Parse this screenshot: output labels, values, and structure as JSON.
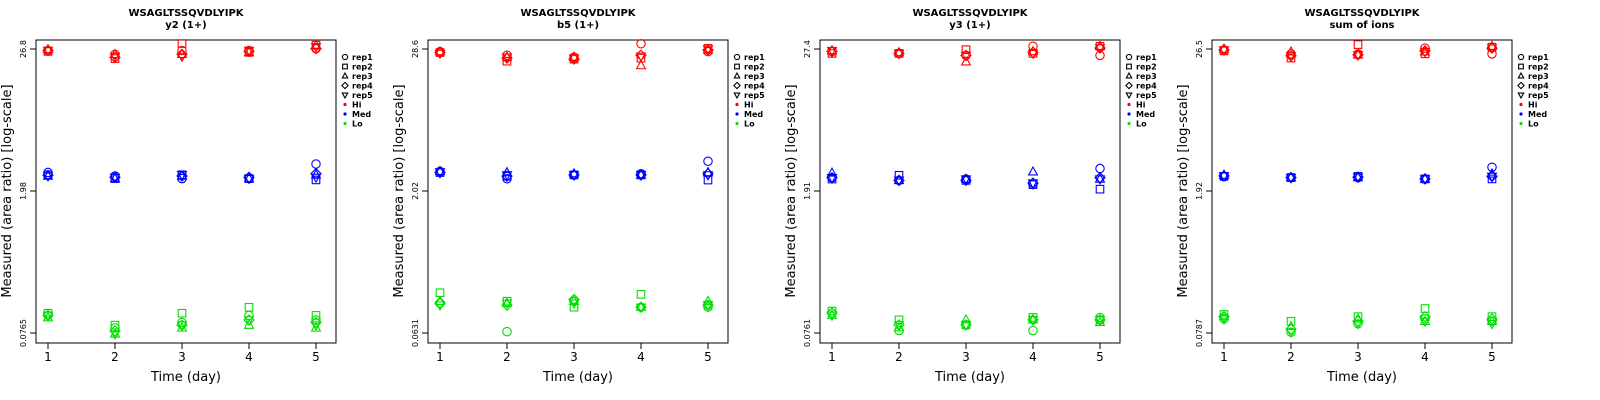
{
  "chart_data": [
    {
      "type": "scatter",
      "title": "WSAGLTSSQVDLYIPK",
      "subtitle": "y2 (1+)",
      "xlabel": "Time (day)",
      "ylabel": "Measured (area ratio) [log-scale]",
      "x_ticks": [
        "1",
        "2",
        "3",
        "4",
        "5"
      ],
      "y_tick_labels": [
        "0.0765",
        "1.98",
        "26.8"
      ],
      "y_scale": "log",
      "ylim": [
        0.0765,
        26.8
      ],
      "legend": {
        "position": "right",
        "entries": [
          "rep1",
          "rep2",
          "rep3",
          "rep4",
          "rep5",
          "Hi",
          "Med",
          "Lo"
        ]
      },
      "groups": [
        {
          "name": "Hi",
          "color": "#ff0000",
          "reps": [
            [
              26.0,
              24.0,
              26.0,
              26.0,
              27.0
            ],
            [
              25.5,
              22.0,
              30.0,
              25.0,
              29.0
            ],
            [
              26.5,
              24.0,
              24.0,
              25.0,
              29.0
            ],
            [
              26.0,
              22.5,
              24.0,
              25.5,
              27.0
            ],
            [
              26.0,
              23.0,
              23.0,
              26.0,
              28.0
            ]
          ]
        },
        {
          "name": "Med",
          "color": "#0000ff",
          "reps": [
            [
              2.1,
              1.95,
              1.85,
              1.85,
              2.5
            ],
            [
              2.0,
              1.85,
              2.0,
              1.85,
              1.8
            ],
            [
              1.95,
              1.85,
              1.95,
              1.85,
              2.0
            ],
            [
              1.98,
              1.9,
              1.95,
              1.9,
              2.05
            ],
            [
              1.95,
              1.9,
              2.0,
              1.85,
              1.9
            ]
          ]
        },
        {
          "name": "Lo",
          "color": "#00e000",
          "reps": [
            [
              0.11,
              0.085,
              0.095,
              0.11,
              0.1
            ],
            [
              0.115,
              0.09,
              0.115,
              0.13,
              0.11
            ],
            [
              0.105,
              0.075,
              0.085,
              0.09,
              0.085
            ],
            [
              0.11,
              0.08,
              0.09,
              0.1,
              0.095
            ],
            [
              0.11,
              0.075,
              0.09,
              0.1,
              0.09
            ]
          ]
        }
      ]
    },
    {
      "type": "scatter",
      "title": "WSAGLTSSQVDLYIPK",
      "subtitle": "b5 (1+)",
      "xlabel": "Time (day)",
      "ylabel": "Measured (area ratio) [log-scale]",
      "x_ticks": [
        "1",
        "2",
        "3",
        "4",
        "5"
      ],
      "y_tick_labels": [
        "0.0631",
        "2.02",
        "28.6"
      ],
      "y_scale": "log",
      "ylim": [
        0.0631,
        28.6
      ],
      "legend": {
        "position": "right",
        "entries": [
          "rep1",
          "rep2",
          "rep3",
          "rep4",
          "rep5",
          "Hi",
          "Med",
          "Lo"
        ]
      },
      "groups": [
        {
          "name": "Hi",
          "color": "#ff0000",
          "reps": [
            [
              27.0,
              25.0,
              24.0,
              32.0,
              27.0
            ],
            [
              26.5,
              22.0,
              23.0,
              23.5,
              29.0
            ],
            [
              27.0,
              24.0,
              24.0,
              20.0,
              28.0
            ],
            [
              26.5,
              23.5,
              23.0,
              25.0,
              28.0
            ],
            [
              26.0,
              24.0,
              23.5,
              24.5,
              28.5
            ]
          ]
        },
        {
          "name": "Med",
          "color": "#0000ff",
          "reps": [
            [
              2.05,
              1.75,
              1.9,
              1.95,
              2.55
            ],
            [
              2.0,
              1.85,
              1.9,
              1.9,
              1.7
            ],
            [
              2.05,
              2.0,
              1.95,
              1.9,
              2.0
            ],
            [
              2.0,
              1.85,
              1.9,
              1.9,
              1.95
            ],
            [
              2.02,
              1.9,
              1.9,
              1.9,
              1.9
            ]
          ]
        },
        {
          "name": "Lo",
          "color": "#00e000",
          "reps": [
            [
              0.12,
              0.065,
              0.125,
              0.11,
              0.11
            ],
            [
              0.15,
              0.125,
              0.11,
              0.145,
              0.115
            ],
            [
              0.125,
              0.12,
              0.125,
              0.11,
              0.125
            ],
            [
              0.12,
              0.115,
              0.13,
              0.11,
              0.115
            ],
            [
              0.115,
              0.12,
              0.12,
              0.11,
              0.115
            ]
          ]
        }
      ]
    },
    {
      "type": "scatter",
      "title": "WSAGLTSSQVDLYIPK",
      "subtitle": "y3 (1+)",
      "xlabel": "Time (day)",
      "ylabel": "Measured (area ratio) [log-scale]",
      "x_ticks": [
        "1",
        "2",
        "3",
        "4",
        "5"
      ],
      "y_tick_labels": [
        "0.0761",
        "1.91",
        "27.4"
      ],
      "y_scale": "log",
      "ylim": [
        0.0761,
        27.4
      ],
      "legend": {
        "position": "right",
        "entries": [
          "rep1",
          "rep2",
          "rep3",
          "rep4",
          "rep5",
          "Hi",
          "Med",
          "Lo"
        ]
      },
      "groups": [
        {
          "name": "Hi",
          "color": "#ff0000",
          "reps": [
            [
              26.0,
              25.0,
              24.0,
              29.0,
              24.0
            ],
            [
              25.0,
              25.0,
              27.0,
              25.0,
              29.0
            ],
            [
              26.5,
              25.5,
              21.0,
              26.0,
              29.0
            ],
            [
              26.0,
              25.0,
              24.0,
              25.5,
              28.0
            ],
            [
              26.5,
              25.0,
              24.0,
              25.0,
              28.0
            ]
          ]
        },
        {
          "name": "Med",
          "color": "#0000ff",
          "reps": [
            [
              1.9,
              1.8,
              1.85,
              1.65,
              2.3
            ],
            [
              1.85,
              2.0,
              1.8,
              1.65,
              1.5
            ],
            [
              2.1,
              1.8,
              1.85,
              2.15,
              1.85
            ],
            [
              1.9,
              1.8,
              1.8,
              1.7,
              1.9
            ],
            [
              1.9,
              1.8,
              1.85,
              1.7,
              1.85
            ]
          ]
        },
        {
          "name": "Lo",
          "color": "#00e000",
          "reps": [
            [
              0.115,
              0.08,
              0.09,
              0.08,
              0.105
            ],
            [
              0.12,
              0.1,
              0.09,
              0.105,
              0.1
            ],
            [
              0.11,
              0.085,
              0.1,
              0.1,
              0.095
            ],
            [
              0.115,
              0.09,
              0.09,
              0.1,
              0.1
            ],
            [
              0.11,
              0.09,
              0.09,
              0.1,
              0.1
            ]
          ]
        }
      ]
    },
    {
      "type": "scatter",
      "title": "WSAGLTSSQVDLYIPK",
      "subtitle": "sum of ions",
      "xlabel": "Time (day)",
      "ylabel": "Measured (area ratio) [log-scale]",
      "x_ticks": [
        "1",
        "2",
        "3",
        "4",
        "5"
      ],
      "y_tick_labels": [
        "0.0787",
        "1.92",
        "26.5"
      ],
      "y_scale": "log",
      "ylim": [
        0.0787,
        26.5
      ],
      "legend": {
        "position": "right",
        "entries": [
          "rep1",
          "rep2",
          "rep3",
          "rep4",
          "rep5",
          "Hi",
          "Med",
          "Lo"
        ]
      },
      "groups": [
        {
          "name": "Hi",
          "color": "#ff0000",
          "reps": [
            [
              26.0,
              24.0,
              24.0,
              27.0,
              24.0
            ],
            [
              25.5,
              22.0,
              29.0,
              24.0,
              27.5
            ],
            [
              26.5,
              25.0,
              23.5,
              25.0,
              28.0
            ],
            [
              26.0,
              23.0,
              23.5,
              25.5,
              27.0
            ],
            [
              26.0,
              23.0,
              23.5,
              25.0,
              27.0
            ]
          ]
        },
        {
          "name": "Med",
          "color": "#0000ff",
          "reps": [
            [
              1.95,
              1.9,
              1.9,
              1.85,
              2.35
            ],
            [
              1.95,
              1.9,
              1.95,
              1.85,
              1.85
            ],
            [
              2.0,
              1.9,
              1.9,
              1.85,
              2.05
            ],
            [
              1.97,
              1.9,
              1.92,
              1.85,
              1.95
            ],
            [
              1.96,
              1.9,
              1.92,
              1.85,
              1.95
            ]
          ]
        },
        {
          "name": "Lo",
          "color": "#00e000",
          "reps": [
            [
              0.105,
              0.08,
              0.095,
              0.105,
              0.1
            ],
            [
              0.115,
              0.1,
              0.11,
              0.13,
              0.11
            ],
            [
              0.11,
              0.09,
              0.105,
              0.1,
              0.1
            ],
            [
              0.11,
              0.085,
              0.1,
              0.11,
              0.105
            ],
            [
              0.105,
              0.08,
              0.095,
              0.1,
              0.095
            ]
          ]
        }
      ]
    }
  ]
}
